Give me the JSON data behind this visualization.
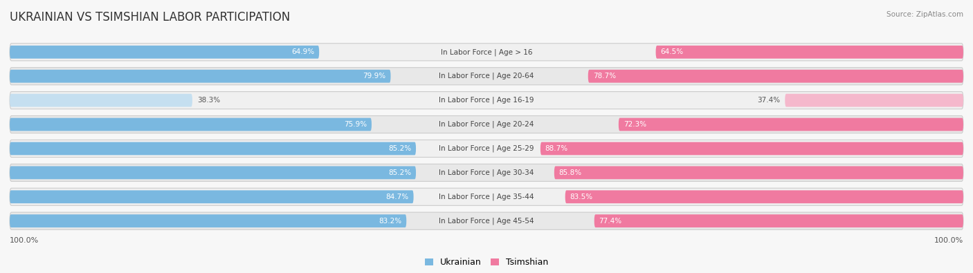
{
  "title": "UKRAINIAN VS TSIMSHIAN LABOR PARTICIPATION",
  "source": "Source: ZipAtlas.com",
  "categories": [
    "In Labor Force | Age > 16",
    "In Labor Force | Age 20-64",
    "In Labor Force | Age 16-19",
    "In Labor Force | Age 20-24",
    "In Labor Force | Age 25-29",
    "In Labor Force | Age 30-34",
    "In Labor Force | Age 35-44",
    "In Labor Force | Age 45-54"
  ],
  "ukrainian_values": [
    64.9,
    79.9,
    38.3,
    75.9,
    85.2,
    85.2,
    84.7,
    83.2
  ],
  "tsimshian_values": [
    64.5,
    78.7,
    37.4,
    72.3,
    88.7,
    85.8,
    83.5,
    77.4
  ],
  "ukrainian_color": "#7AB8E0",
  "ukrainian_color_light": "#C5DFF0",
  "tsimshian_color": "#F07AA0",
  "tsimshian_color_light": "#F5B8CC",
  "row_bg_color": "#E8E8E8",
  "row_bg_color2": "#F0F0F0",
  "bg_color": "#F7F7F7",
  "max_value": 100.0,
  "legend_ukrainian": "Ukrainian",
  "legend_tsimshian": "Tsimshian",
  "title_fontsize": 12,
  "label_fontsize": 7.5,
  "value_fontsize": 7.5,
  "bottom_label": "100.0%"
}
